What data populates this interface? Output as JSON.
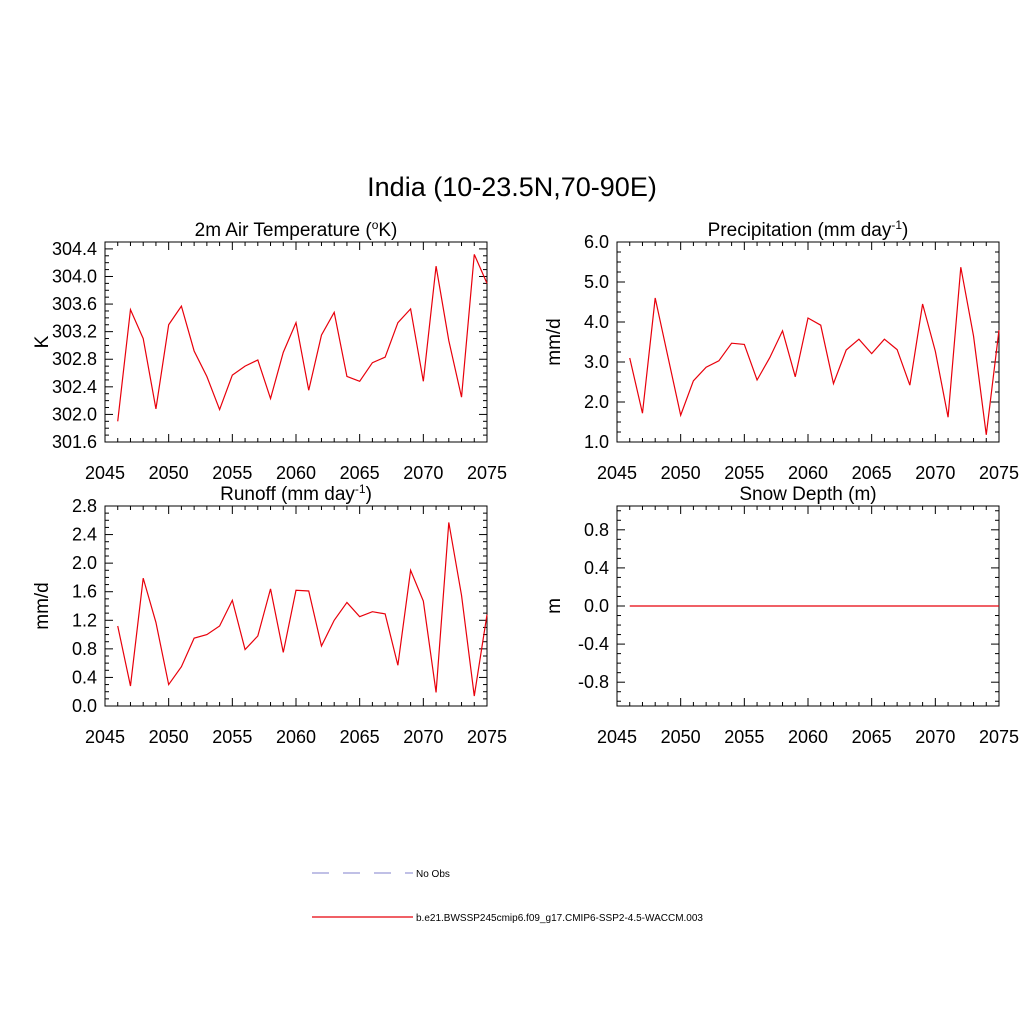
{
  "figure": {
    "title": "India (10-23.5N,70-90E)"
  },
  "colors": {
    "series_model": "#e8000b",
    "series_obs": "#9a9ad8",
    "axes": "#000000",
    "background": "#ffffff"
  },
  "chart_data": [
    {
      "type": "line",
      "title": "2m Air Temperature (",
      "title_sup": "o",
      "title_suffix": "K)",
      "xlabel": "",
      "ylabel": "K",
      "xlim": [
        2045,
        2075
      ],
      "ylim": [
        301.6,
        304.5
      ],
      "xticks": [
        2045,
        2050,
        2055,
        2060,
        2065,
        2070,
        2075
      ],
      "xtick_labels": [
        "2045",
        "2050",
        "2055",
        "2060",
        "2065",
        "2070",
        "2075"
      ],
      "yticks": [
        301.6,
        302.0,
        302.4,
        302.8,
        303.2,
        303.6,
        304.0,
        304.4
      ],
      "ytick_labels": [
        "301.6",
        "302.0",
        "302.4",
        "302.8",
        "303.2",
        "303.6",
        "304.0",
        "304.4"
      ],
      "x": [
        2046,
        2047,
        2048,
        2049,
        2050,
        2051,
        2052,
        2053,
        2054,
        2055,
        2056,
        2057,
        2058,
        2059,
        2060,
        2061,
        2062,
        2063,
        2064,
        2065,
        2066,
        2067,
        2068,
        2069,
        2070,
        2071,
        2072,
        2073,
        2074,
        2075
      ],
      "series": [
        {
          "name": "b.e21.BWSSP245cmip6.f09_g17.CMIP6-SSP2-4.5-WACCM.003",
          "values": [
            301.9,
            303.52,
            303.1,
            302.08,
            303.3,
            303.57,
            302.92,
            302.55,
            302.07,
            302.57,
            302.7,
            302.79,
            302.23,
            302.9,
            303.33,
            302.35,
            303.15,
            303.48,
            302.55,
            302.48,
            302.75,
            302.83,
            303.33,
            303.53,
            302.48,
            304.15,
            303.07,
            302.25,
            304.32,
            303.9
          ]
        }
      ]
    },
    {
      "type": "line",
      "title": "Precipitation (mm day",
      "title_sup": "-1",
      "title_suffix": ")",
      "xlabel": "",
      "ylabel": "mm/d",
      "xlim": [
        2045,
        2075
      ],
      "ylim": [
        1.0,
        6.0
      ],
      "xticks": [
        2045,
        2050,
        2055,
        2060,
        2065,
        2070,
        2075
      ],
      "xtick_labels": [
        "2045",
        "2050",
        "2055",
        "2060",
        "2065",
        "2070",
        "2075"
      ],
      "yticks": [
        1.0,
        2.0,
        3.0,
        4.0,
        5.0,
        6.0
      ],
      "ytick_labels": [
        "1.0",
        "2.0",
        "3.0",
        "4.0",
        "5.0",
        "6.0"
      ],
      "x": [
        2046,
        2047,
        2048,
        2049,
        2050,
        2051,
        2052,
        2053,
        2054,
        2055,
        2056,
        2057,
        2058,
        2059,
        2060,
        2061,
        2062,
        2063,
        2064,
        2065,
        2066,
        2067,
        2068,
        2069,
        2070,
        2071,
        2072,
        2073,
        2074,
        2075
      ],
      "series": [
        {
          "name": "b.e21.BWSSP245cmip6.f09_g17.CMIP6-SSP2-4.5-WACCM.003",
          "values": [
            3.1,
            1.72,
            4.6,
            3.13,
            1.67,
            2.53,
            2.87,
            3.03,
            3.47,
            3.44,
            2.55,
            3.11,
            3.78,
            2.63,
            4.1,
            3.92,
            2.46,
            3.3,
            3.57,
            3.21,
            3.57,
            3.31,
            2.42,
            4.45,
            3.27,
            1.62,
            5.37,
            3.65,
            1.18,
            3.8
          ]
        }
      ]
    },
    {
      "type": "line",
      "title": "Runoff (mm day",
      "title_sup": "-1",
      "title_suffix": ")",
      "xlabel": "",
      "ylabel": "mm/d",
      "xlim": [
        2045,
        2075
      ],
      "ylim": [
        0.0,
        2.8
      ],
      "xticks": [
        2045,
        2050,
        2055,
        2060,
        2065,
        2070,
        2075
      ],
      "xtick_labels": [
        "2045",
        "2050",
        "2055",
        "2060",
        "2065",
        "2070",
        "2075"
      ],
      "yticks": [
        0.0,
        0.4,
        0.8,
        1.2,
        1.6,
        2.0,
        2.4,
        2.8
      ],
      "ytick_labels": [
        "0.0",
        "0.4",
        "0.8",
        "1.2",
        "1.6",
        "2.0",
        "2.4",
        "2.8"
      ],
      "x": [
        2046,
        2047,
        2048,
        2049,
        2050,
        2051,
        2052,
        2053,
        2054,
        2055,
        2056,
        2057,
        2058,
        2059,
        2060,
        2061,
        2062,
        2063,
        2064,
        2065,
        2066,
        2067,
        2068,
        2069,
        2070,
        2071,
        2072,
        2073,
        2074,
        2075
      ],
      "series": [
        {
          "name": "b.e21.BWSSP245cmip6.f09_g17.CMIP6-SSP2-4.5-WACCM.003",
          "values": [
            1.12,
            0.28,
            1.79,
            1.17,
            0.3,
            0.55,
            0.95,
            1.0,
            1.12,
            1.48,
            0.79,
            0.98,
            1.64,
            0.75,
            1.62,
            1.61,
            0.84,
            1.2,
            1.45,
            1.25,
            1.32,
            1.29,
            0.57,
            1.9,
            1.47,
            0.19,
            2.57,
            1.55,
            0.14,
            1.28
          ]
        }
      ]
    },
    {
      "type": "line",
      "title": "Snow Depth (m)",
      "title_sup": "",
      "title_suffix": "",
      "xlabel": "",
      "ylabel": "m",
      "xlim": [
        2045,
        2075
      ],
      "ylim": [
        -1.05,
        1.05
      ],
      "xticks": [
        2045,
        2050,
        2055,
        2060,
        2065,
        2070,
        2075
      ],
      "xtick_labels": [
        "2045",
        "2050",
        "2055",
        "2060",
        "2065",
        "2070",
        "2075"
      ],
      "yticks": [
        -0.8,
        -0.4,
        0.0,
        0.4,
        0.8
      ],
      "ytick_labels": [
        "-0.8",
        "-0.4",
        "0.0",
        "0.4",
        "0.8"
      ],
      "x": [
        2046,
        2047,
        2048,
        2049,
        2050,
        2051,
        2052,
        2053,
        2054,
        2055,
        2056,
        2057,
        2058,
        2059,
        2060,
        2061,
        2062,
        2063,
        2064,
        2065,
        2066,
        2067,
        2068,
        2069,
        2070,
        2071,
        2072,
        2073,
        2074,
        2075
      ],
      "series": [
        {
          "name": "b.e21.BWSSP245cmip6.f09_g17.CMIP6-SSP2-4.5-WACCM.003",
          "values": [
            0,
            0,
            0,
            0,
            0,
            0,
            0,
            0,
            0,
            0,
            0,
            0,
            0,
            0,
            0,
            0,
            0,
            0,
            0,
            0,
            0,
            0,
            0,
            0,
            0,
            0,
            0,
            0,
            0,
            0
          ]
        }
      ]
    }
  ],
  "legend": {
    "items": [
      {
        "label": "No Obs",
        "style": "dashed",
        "color": "#9a9ad8"
      },
      {
        "label": "b.e21.BWSSP245cmip6.f09_g17.CMIP6-SSP2-4.5-WACCM.003",
        "style": "solid",
        "color": "#e8000b"
      }
    ]
  }
}
